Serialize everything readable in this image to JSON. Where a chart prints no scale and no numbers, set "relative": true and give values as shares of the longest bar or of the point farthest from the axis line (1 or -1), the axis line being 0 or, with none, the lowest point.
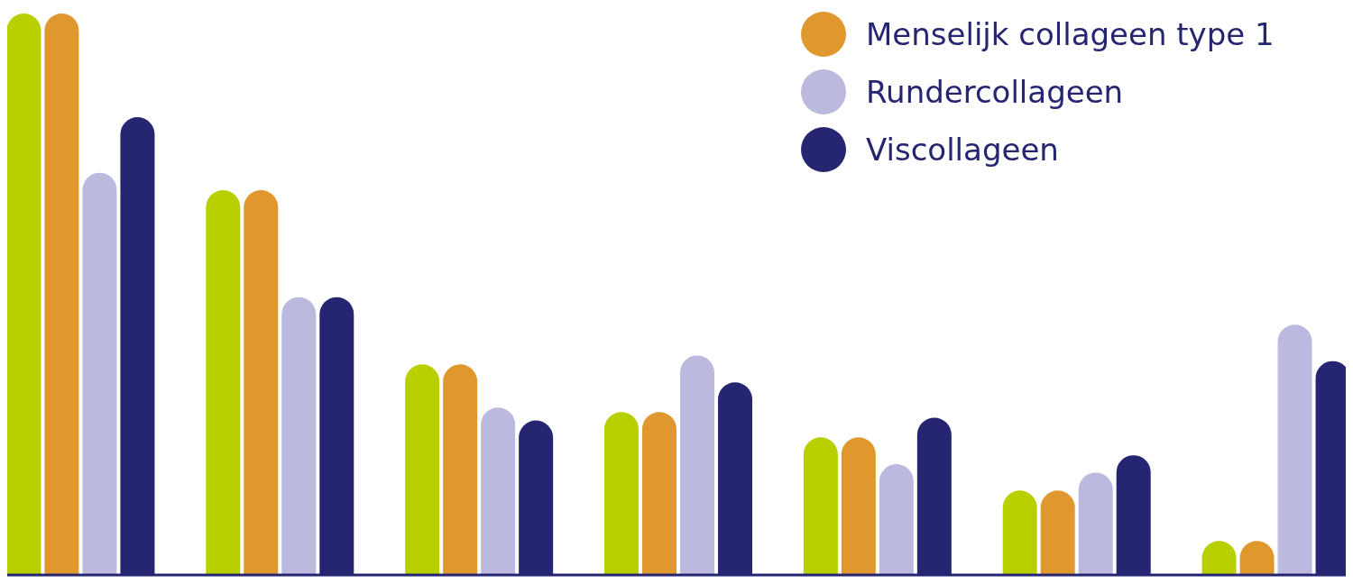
{
  "chart_data": {
    "type": "bar",
    "relative": true,
    "categories": [
      null,
      null,
      null,
      null,
      null,
      null,
      null
    ],
    "legend": "top right",
    "series": [
      {
        "color": "#b8cf00",
        "values": [
          1,
          0.685,
          0.374,
          0.289,
          0.244,
          0.149,
          0.059
        ]
      },
      {
        "name": "Menselijk collageen type 1",
        "color": "#e0982e",
        "values": [
          1,
          0.685,
          0.374,
          0.289,
          0.244,
          0.149,
          0.059
        ]
      },
      {
        "name": "Rundercollageen",
        "color": "#bcb9de",
        "values": [
          0.716,
          0.494,
          0.297,
          0.39,
          0.196,
          0.181,
          0.445
        ]
      },
      {
        "name": "Viscollageen",
        "color": "#252572",
        "values": [
          0.815,
          0.494,
          0.274,
          0.342,
          0.279,
          0.212,
          0.38
        ]
      }
    ]
  }
}
